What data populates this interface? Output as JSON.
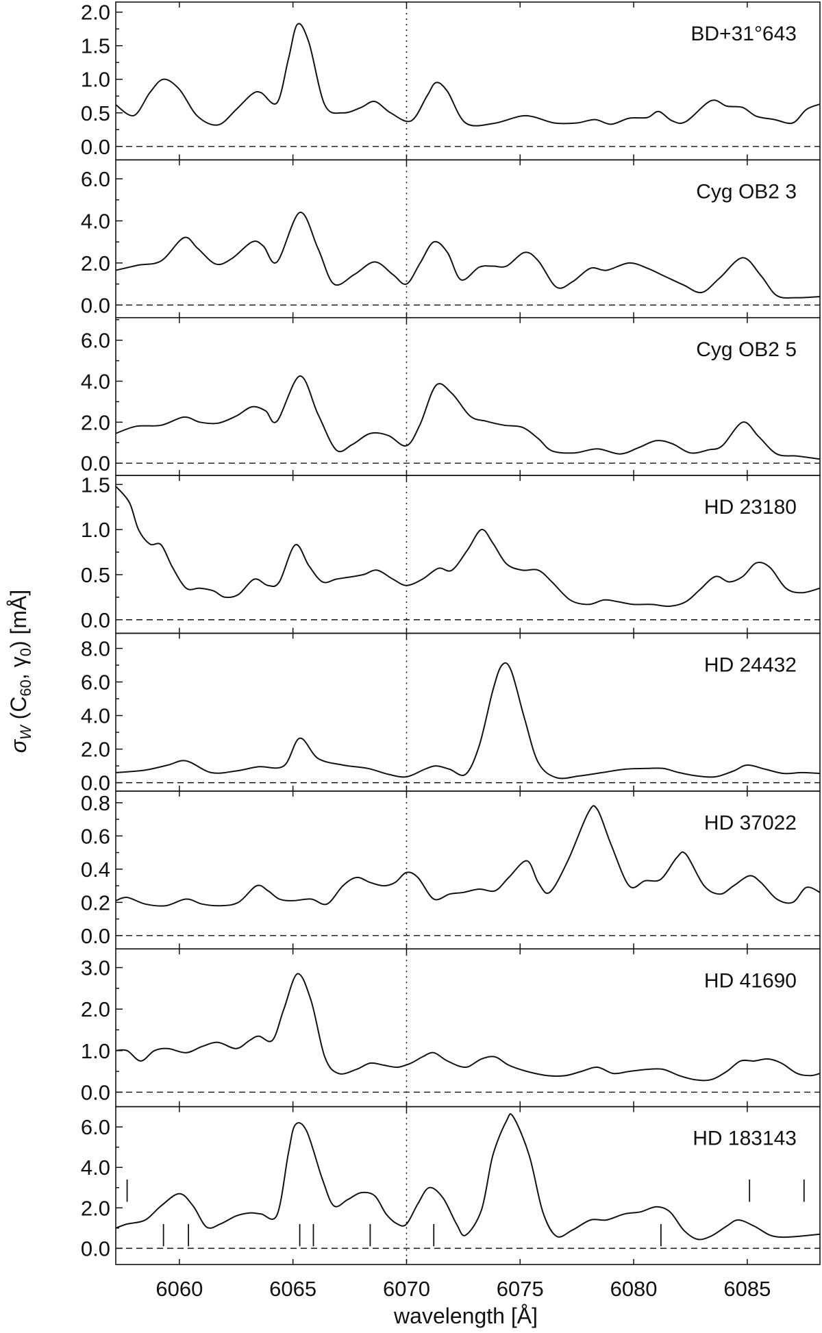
{
  "chart_data": {
    "type": "line",
    "xlabel": "wavelength [Å]",
    "ylabel_prefix": "σ",
    "ylabel_sub": "W",
    "ylabel_mid": " (C",
    "ylabel_sub2": "60",
    "ylabel_mid2": ", γ",
    "ylabel_sub3": "0",
    "ylabel_suffix": ") [mÅ]",
    "xlim": [
      6057.2,
      6088.2
    ],
    "x_ticks": [
      6060,
      6065,
      6070,
      6075,
      6080,
      6085
    ],
    "reference_line_x": 6070,
    "panels": [
      {
        "name": "BD+31°643",
        "ylim": [
          -0.2,
          2.15
        ],
        "y_ticks": [
          "0.0",
          "0.5",
          "1.0",
          "1.5",
          "2.0"
        ],
        "x": [
          6057.2,
          6058.0,
          6058.7,
          6059.3,
          6060.0,
          6060.8,
          6061.7,
          6062.5,
          6063.2,
          6063.6,
          6064.3,
          6064.8,
          6065.2,
          6065.7,
          6066.4,
          6067.2,
          6068.0,
          6068.6,
          6069.3,
          6070.2,
          6070.9,
          6071.3,
          6071.8,
          6072.6,
          6073.8,
          6075.0,
          6075.6,
          6076.5,
          6077.5,
          6078.3,
          6079.0,
          6079.8,
          6080.6,
          6081.1,
          6081.7,
          6082.3,
          6083.4,
          6084.1,
          6084.8,
          6085.4,
          6086.2,
          6087.0,
          6087.6,
          6088.2
        ],
        "y": [
          0.62,
          0.46,
          0.8,
          1.0,
          0.85,
          0.45,
          0.32,
          0.55,
          0.78,
          0.8,
          0.65,
          1.3,
          1.82,
          1.55,
          0.62,
          0.5,
          0.58,
          0.67,
          0.5,
          0.38,
          0.75,
          0.95,
          0.82,
          0.35,
          0.34,
          0.45,
          0.44,
          0.35,
          0.35,
          0.4,
          0.33,
          0.42,
          0.43,
          0.52,
          0.38,
          0.37,
          0.68,
          0.6,
          0.58,
          0.45,
          0.4,
          0.35,
          0.55,
          0.63
        ]
      },
      {
        "name": "Cyg OB2 3",
        "ylim": [
          -0.6,
          6.9
        ],
        "y_ticks": [
          "0.0",
          "2.0",
          "4.0",
          "6.0"
        ],
        "x": [
          6057.2,
          6058.2,
          6059.2,
          6060.2,
          6060.8,
          6061.6,
          6062.3,
          6063.2,
          6063.7,
          6064.3,
          6065.3,
          6066.1,
          6066.8,
          6067.7,
          6068.6,
          6069.4,
          6070.0,
          6070.6,
          6071.2,
          6071.8,
          6072.4,
          6073.2,
          6073.8,
          6074.4,
          6075.2,
          6075.8,
          6076.6,
          6077.3,
          6078.1,
          6078.8,
          6079.8,
          6080.6,
          6081.4,
          6082.2,
          6083.0,
          6083.8,
          6084.8,
          6085.6,
          6086.3,
          6087.2,
          6088.2
        ],
        "y": [
          1.65,
          1.9,
          2.1,
          3.2,
          2.7,
          1.95,
          2.2,
          3.0,
          2.8,
          2.05,
          4.4,
          2.7,
          1.0,
          1.45,
          2.05,
          1.45,
          1.0,
          2.0,
          3.0,
          2.5,
          1.2,
          1.8,
          1.85,
          1.85,
          2.5,
          2.1,
          0.85,
          1.1,
          1.75,
          1.65,
          2.0,
          1.75,
          1.35,
          0.95,
          0.6,
          1.3,
          2.25,
          1.4,
          0.45,
          0.35,
          0.4
        ]
      },
      {
        "name": "Cyg OB2 5",
        "ylim": [
          -0.6,
          7.1
        ],
        "y_ticks": [
          "0.0",
          "2.0",
          "4.0",
          "6.0"
        ],
        "x": [
          6057.2,
          6058.1,
          6059.2,
          6060.2,
          6060.9,
          6061.7,
          6062.5,
          6063.2,
          6063.8,
          6064.3,
          6065.3,
          6066.1,
          6066.9,
          6067.6,
          6068.4,
          6069.2,
          6070.0,
          6070.6,
          6071.3,
          6072.0,
          6072.8,
          6073.5,
          6074.3,
          6075.1,
          6075.8,
          6076.4,
          6077.4,
          6078.4,
          6079.4,
          6080.2,
          6081.0,
          6081.7,
          6082.5,
          6083.3,
          6083.9,
          6084.8,
          6085.5,
          6086.3,
          6087.2,
          6088.2
        ],
        "y": [
          1.45,
          1.8,
          1.85,
          2.25,
          2.0,
          1.95,
          2.3,
          2.75,
          2.55,
          2.05,
          4.25,
          2.4,
          0.65,
          0.9,
          1.45,
          1.35,
          0.85,
          1.9,
          3.8,
          3.4,
          2.3,
          2.05,
          1.85,
          1.75,
          1.2,
          0.6,
          0.5,
          0.7,
          0.45,
          0.75,
          1.1,
          0.95,
          0.5,
          0.65,
          0.85,
          2.0,
          1.3,
          0.45,
          0.35,
          0.2
        ]
      },
      {
        "name": "HD 23180",
        "ylim": [
          -0.15,
          1.6
        ],
        "y_ticks": [
          "0.0",
          "0.5",
          "1.0",
          "1.5"
        ],
        "x": [
          6057.2,
          6057.8,
          6058.2,
          6058.7,
          6059.2,
          6059.7,
          6060.3,
          6060.9,
          6061.5,
          6062.0,
          6062.6,
          6063.3,
          6063.9,
          6064.4,
          6065.1,
          6065.7,
          6066.3,
          6066.9,
          6067.4,
          6068.1,
          6068.7,
          6069.4,
          6070.0,
          6070.7,
          6071.4,
          6072.0,
          6072.7,
          6073.3,
          6073.8,
          6074.4,
          6075.1,
          6075.8,
          6076.4,
          6077.2,
          6078.0,
          6078.7,
          6079.3,
          6080.0,
          6080.8,
          6081.6,
          6082.3,
          6082.9,
          6083.6,
          6084.2,
          6084.8,
          6085.4,
          6086.0,
          6086.7,
          6087.4,
          6088.2
        ],
        "y": [
          1.48,
          1.3,
          1.0,
          0.84,
          0.83,
          0.58,
          0.35,
          0.35,
          0.32,
          0.25,
          0.28,
          0.45,
          0.38,
          0.42,
          0.83,
          0.6,
          0.42,
          0.45,
          0.47,
          0.5,
          0.55,
          0.45,
          0.38,
          0.45,
          0.57,
          0.55,
          0.78,
          1.0,
          0.85,
          0.62,
          0.55,
          0.55,
          0.42,
          0.22,
          0.17,
          0.22,
          0.2,
          0.17,
          0.17,
          0.15,
          0.2,
          0.33,
          0.48,
          0.42,
          0.48,
          0.63,
          0.58,
          0.35,
          0.3,
          0.35
        ]
      },
      {
        "name": "HD 24432",
        "ylim": [
          -0.5,
          8.9
        ],
        "y_ticks": [
          "0.0",
          "2.0",
          "4.0",
          "6.0",
          "8.0"
        ],
        "x": [
          6057.2,
          6058.5,
          6059.5,
          6060.3,
          6061.4,
          6062.5,
          6063.5,
          6064.6,
          6065.3,
          6066.1,
          6067.2,
          6068.3,
          6069.2,
          6070.0,
          6070.8,
          6071.3,
          6071.9,
          6072.6,
          6073.2,
          6073.8,
          6074.2,
          6074.6,
          6075.2,
          6075.8,
          6076.6,
          6077.6,
          6078.6,
          6079.6,
          6080.6,
          6081.3,
          6082.0,
          6082.8,
          6083.6,
          6084.4,
          6085.0,
          6085.8,
          6086.6,
          6087.4,
          6088.2
        ],
        "y": [
          0.6,
          0.75,
          1.05,
          1.3,
          0.6,
          0.7,
          0.95,
          1.0,
          2.65,
          1.45,
          1.05,
          0.85,
          0.5,
          0.35,
          0.8,
          1.0,
          0.8,
          0.5,
          2.2,
          5.5,
          7.0,
          6.7,
          3.8,
          1.2,
          0.3,
          0.4,
          0.6,
          0.8,
          0.85,
          0.85,
          0.6,
          0.4,
          0.35,
          0.7,
          1.05,
          0.8,
          0.55,
          0.6,
          0.55
        ]
      },
      {
        "name": "HD 37022",
        "ylim": [
          -0.08,
          0.87
        ],
        "y_ticks": [
          "0.0",
          "0.2",
          "0.4",
          "0.6",
          "0.8"
        ],
        "x": [
          6057.2,
          6057.7,
          6058.5,
          6059.4,
          6060.3,
          6061.0,
          6061.8,
          6062.6,
          6063.4,
          6063.9,
          6064.4,
          6065.0,
          6065.8,
          6066.5,
          6067.2,
          6067.8,
          6068.4,
          6069.0,
          6069.5,
          6070.0,
          6070.5,
          6071.2,
          6071.9,
          6072.5,
          6073.2,
          6073.9,
          6074.5,
          6075.3,
          6075.8,
          6076.3,
          6077.1,
          6078.0,
          6078.4,
          6079.0,
          6079.8,
          6080.5,
          6081.2,
          6081.9,
          6082.3,
          6083.1,
          6083.8,
          6084.4,
          6085.1,
          6085.6,
          6086.3,
          6087.0,
          6087.6,
          6088.2
        ],
        "y": [
          0.21,
          0.23,
          0.19,
          0.18,
          0.22,
          0.19,
          0.18,
          0.2,
          0.3,
          0.27,
          0.22,
          0.21,
          0.22,
          0.19,
          0.3,
          0.35,
          0.32,
          0.3,
          0.32,
          0.38,
          0.35,
          0.22,
          0.25,
          0.26,
          0.28,
          0.27,
          0.35,
          0.45,
          0.32,
          0.26,
          0.45,
          0.74,
          0.76,
          0.55,
          0.3,
          0.33,
          0.34,
          0.47,
          0.49,
          0.3,
          0.25,
          0.3,
          0.36,
          0.32,
          0.22,
          0.2,
          0.29,
          0.26
        ]
      },
      {
        "name": "HD 41690",
        "ylim": [
          -0.35,
          3.45
        ],
        "y_ticks": [
          "0.0",
          "1.0",
          "2.0",
          "3.0"
        ],
        "x": [
          6057.2,
          6057.7,
          6058.3,
          6058.9,
          6059.5,
          6060.3,
          6061.0,
          6061.7,
          6062.5,
          6063.1,
          6063.5,
          6064.1,
          6064.6,
          6065.2,
          6065.8,
          6066.4,
          6067.0,
          6067.8,
          6068.4,
          6069.0,
          6069.6,
          6070.2,
          6070.7,
          6071.2,
          6071.8,
          6072.6,
          6073.3,
          6073.9,
          6074.5,
          6075.3,
          6076.2,
          6077.0,
          6077.7,
          6078.4,
          6079.1,
          6079.8,
          6080.6,
          6081.3,
          6082.0,
          6082.7,
          6083.4,
          6084.1,
          6084.7,
          6085.3,
          6085.9,
          6086.5,
          6087.2,
          6087.8,
          6088.2
        ],
        "y": [
          1.0,
          1.0,
          0.75,
          1.0,
          1.05,
          0.95,
          1.1,
          1.2,
          1.05,
          1.25,
          1.35,
          1.25,
          2.0,
          2.85,
          2.2,
          0.85,
          0.45,
          0.55,
          0.7,
          0.65,
          0.6,
          0.7,
          0.85,
          0.95,
          0.75,
          0.6,
          0.8,
          0.85,
          0.65,
          0.5,
          0.4,
          0.4,
          0.5,
          0.6,
          0.45,
          0.5,
          0.55,
          0.55,
          0.4,
          0.3,
          0.3,
          0.5,
          0.75,
          0.75,
          0.8,
          0.7,
          0.45,
          0.4,
          0.45
        ]
      },
      {
        "name": "HD 183143",
        "ylim": [
          -0.8,
          7.0
        ],
        "y_ticks": [
          "0.0",
          "2.0",
          "4.0",
          "6.0"
        ],
        "x": [
          6057.2,
          6057.7,
          6058.5,
          6059.2,
          6060.0,
          6060.6,
          6061.2,
          6061.8,
          6062.5,
          6063.1,
          6063.6,
          6064.3,
          6064.8,
          6065.1,
          6065.6,
          6066.3,
          6066.8,
          6067.4,
          6068.0,
          6068.6,
          6069.1,
          6069.6,
          6070.0,
          6070.5,
          6071.0,
          6071.6,
          6072.2,
          6072.6,
          6073.3,
          6073.8,
          6074.4,
          6074.7,
          6075.4,
          6076.0,
          6076.6,
          6077.3,
          6078.1,
          6078.8,
          6079.6,
          6080.3,
          6081.0,
          6081.6,
          6082.2,
          6082.8,
          6083.4,
          6084.1,
          6084.6,
          6085.3,
          6086.0,
          6086.6,
          6087.3,
          6088.2
        ],
        "y": [
          1.0,
          1.2,
          1.4,
          2.1,
          2.7,
          2.1,
          1.05,
          1.2,
          1.6,
          1.75,
          1.7,
          1.65,
          4.7,
          6.1,
          5.8,
          3.4,
          2.1,
          2.4,
          2.75,
          2.6,
          1.7,
          1.2,
          1.2,
          2.2,
          3.0,
          2.5,
          1.2,
          0.65,
          1.9,
          4.6,
          6.3,
          6.5,
          4.6,
          1.8,
          0.6,
          0.9,
          1.4,
          1.4,
          1.7,
          1.8,
          2.05,
          1.8,
          0.9,
          0.45,
          0.6,
          1.1,
          1.4,
          1.1,
          0.65,
          0.55,
          0.6,
          0.7
        ]
      }
    ],
    "line_markers": [
      {
        "x": 6057.7,
        "position": "upper"
      },
      {
        "x": 6059.3,
        "position": "lower"
      },
      {
        "x": 6060.4,
        "position": "lower"
      },
      {
        "x": 6065.3,
        "position": "lower"
      },
      {
        "x": 6065.9,
        "position": "lower"
      },
      {
        "x": 6068.4,
        "position": "lower"
      },
      {
        "x": 6071.2,
        "position": "lower"
      },
      {
        "x": 6081.2,
        "position": "lower"
      },
      {
        "x": 6085.1,
        "position": "upper"
      },
      {
        "x": 6087.5,
        "position": "upper"
      }
    ],
    "grid": false,
    "line_color": "#111111"
  }
}
